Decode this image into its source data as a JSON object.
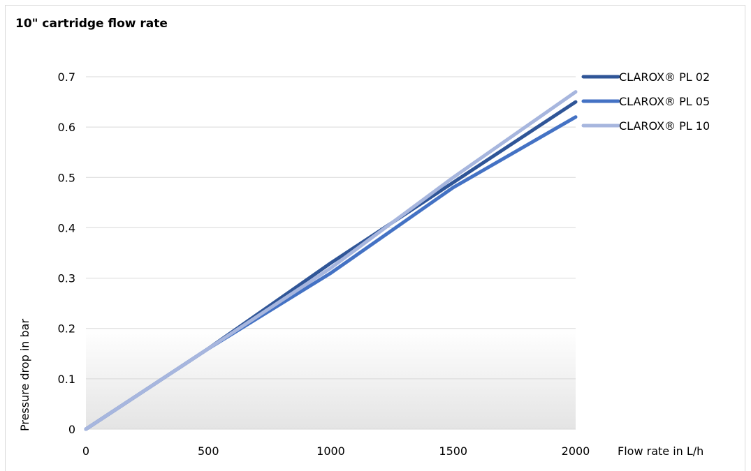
{
  "chart_data": {
    "type": "line",
    "title": "10\" cartridge flow rate",
    "xlabel": "Flow rate in L/h",
    "ylabel": "Pressure drop in bar",
    "x": [
      0,
      500,
      1000,
      1500,
      2000
    ],
    "xticks": [
      "0",
      "500",
      "1000",
      "1500",
      "2000"
    ],
    "yticks": [
      "0",
      "0.1",
      "0.2",
      "0.3",
      "0.4",
      "0.5",
      "0.6",
      "0.7"
    ],
    "xlim": [
      0,
      2000
    ],
    "ylim": [
      0,
      0.7
    ],
    "grid": true,
    "legend_position": "right",
    "shaded_band": [
      0,
      0.2
    ],
    "series": [
      {
        "name": "CLAROX® PL 02",
        "color": "#2f5597",
        "values": [
          0,
          0.16,
          0.33,
          0.49,
          0.65
        ]
      },
      {
        "name": "CLAROX® PL 05",
        "color": "#4472c4",
        "values": [
          0,
          0.16,
          0.31,
          0.48,
          0.62
        ]
      },
      {
        "name": "CLAROX® PL 10",
        "color": "#a7b6de",
        "values": [
          0,
          0.16,
          0.32,
          0.5,
          0.67
        ]
      }
    ]
  }
}
